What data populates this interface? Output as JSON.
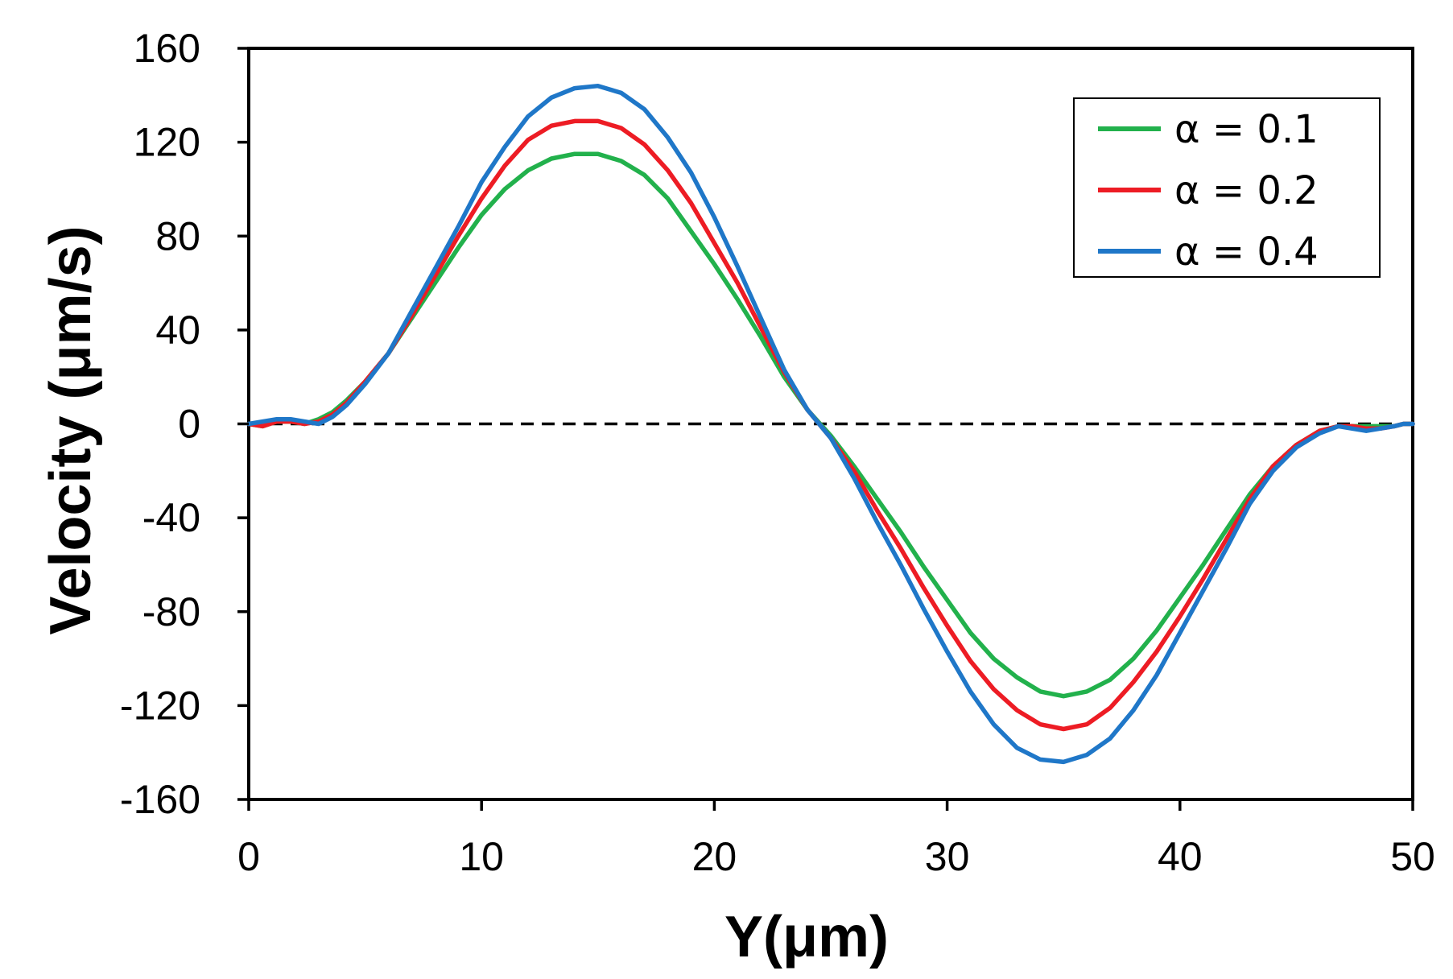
{
  "chart_data": {
    "type": "line",
    "title": "",
    "xlabel": "Y(μm)",
    "ylabel": "Velocity (μm/s)",
    "xlim": [
      0,
      50
    ],
    "ylim": [
      -160,
      160
    ],
    "xticks": [
      0,
      10,
      20,
      30,
      40,
      50
    ],
    "yticks": [
      160,
      120,
      80,
      40,
      0,
      -40,
      -80,
      -120,
      -160
    ],
    "grid": false,
    "legend_position": "top-right",
    "reference_line": {
      "y": 0,
      "style": "dashed",
      "color": "#000000"
    },
    "x": [
      0,
      0.6,
      1.2,
      1.8,
      2.4,
      3.0,
      3.6,
      4.2,
      5.0,
      6.0,
      7.0,
      8.0,
      9.0,
      10.0,
      11.0,
      12.0,
      13.0,
      14.0,
      15.0,
      16.0,
      17.0,
      18.0,
      19.0,
      20.0,
      21.0,
      22.0,
      23.0,
      24.0,
      25.0,
      26.0,
      27.0,
      28.0,
      29.0,
      30.0,
      31.0,
      32.0,
      33.0,
      34.0,
      35.0,
      36.0,
      37.0,
      38.0,
      39.0,
      40.0,
      41.0,
      42.0,
      43.0,
      44.0,
      45.0,
      46.0,
      46.8,
      47.4,
      48.0,
      48.6,
      49.2,
      49.6,
      50.0
    ],
    "series": [
      {
        "name": "α = 0.1",
        "color": "#22b14c",
        "values": [
          0,
          -1,
          1,
          1,
          0,
          2,
          5,
          10,
          18,
          30,
          45,
          60,
          75,
          89,
          100,
          108,
          113,
          115,
          115,
          112,
          106,
          96,
          82,
          68,
          53,
          37,
          20,
          6,
          -5,
          -18,
          -32,
          -46,
          -61,
          -75,
          -89,
          -100,
          -108,
          -114,
          -116,
          -114,
          -109,
          -100,
          -88,
          -74,
          -60,
          -45,
          -30,
          -18,
          -9,
          -3,
          -1,
          -1,
          -1,
          -1,
          -1,
          0,
          0
        ]
      },
      {
        "name": "α = 0.2",
        "color": "#ed1c24",
        "values": [
          0,
          -1,
          1,
          1,
          0,
          1,
          4,
          9,
          18,
          30,
          46,
          63,
          80,
          96,
          110,
          121,
          127,
          129,
          129,
          126,
          119,
          108,
          94,
          77,
          60,
          41,
          22,
          6,
          -6,
          -20,
          -37,
          -53,
          -70,
          -86,
          -101,
          -113,
          -122,
          -128,
          -130,
          -128,
          -121,
          -110,
          -97,
          -82,
          -66,
          -49,
          -32,
          -18,
          -9,
          -3,
          -1,
          -1,
          -2,
          -2,
          -1,
          0,
          0
        ]
      },
      {
        "name": "α = 0.4",
        "color": "#1f77c8",
        "values": [
          0,
          1,
          2,
          2,
          1,
          0,
          3,
          8,
          17,
          30,
          48,
          66,
          84,
          103,
          118,
          131,
          139,
          143,
          144,
          141,
          134,
          122,
          107,
          88,
          67,
          45,
          23,
          6,
          -6,
          -23,
          -42,
          -60,
          -79,
          -97,
          -114,
          -128,
          -138,
          -143,
          -144,
          -141,
          -134,
          -122,
          -107,
          -89,
          -71,
          -53,
          -34,
          -20,
          -10,
          -4,
          -1,
          -2,
          -3,
          -2,
          -1,
          0,
          0
        ]
      }
    ]
  }
}
